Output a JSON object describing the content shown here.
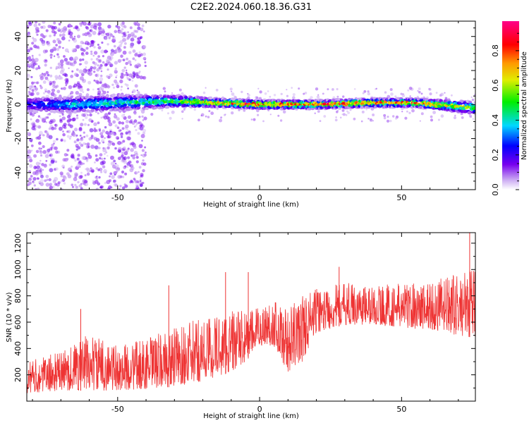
{
  "chart_data": [
    {
      "type": "heatmap",
      "title": "C2E2.2024.060.18.36.G31",
      "xlabel": "Height of straight line (km)",
      "ylabel": "Frequency (Hz)",
      "xlim": [
        -82,
        76
      ],
      "ylim": [
        -50,
        49
      ],
      "xticks": [
        -50,
        0,
        50
      ],
      "yticks": [
        -40,
        -20,
        0,
        20,
        40
      ],
      "colorbar": {
        "label": "Normalized spectral amplitude",
        "range": [
          0.0,
          0.97
        ],
        "ticks": [
          0.0,
          0.2,
          0.4,
          0.6,
          0.8
        ],
        "tick_labels": [
          "0.0",
          "0.2",
          "0.4",
          "0.6",
          "0.8"
        ],
        "colormap": "rainbow (white-purple-blue-cyan-green-yellow-orange-red-magenta)"
      },
      "ridge": {
        "center_hz": 0,
        "description": "strong narrow band near 0 Hz across all heights; broad diffuse purple scatter below about -40 km",
        "segments": [
          {
            "x": -82,
            "center": 0,
            "halfwidth": 4,
            "amplitude": 0.25
          },
          {
            "x": -65,
            "center": 0,
            "halfwidth": 4,
            "amplitude": 0.4
          },
          {
            "x": -50,
            "center": 1,
            "halfwidth": 4,
            "amplitude": 0.45
          },
          {
            "x": -30,
            "center": 2,
            "halfwidth": 3,
            "amplitude": 0.55
          },
          {
            "x": -15,
            "center": 1,
            "halfwidth": 2,
            "amplitude": 0.8
          },
          {
            "x": 0,
            "center": 0,
            "halfwidth": 2,
            "amplitude": 0.9
          },
          {
            "x": 20,
            "center": 0,
            "halfwidth": 2,
            "amplitude": 0.85
          },
          {
            "x": 40,
            "center": 1,
            "halfwidth": 2,
            "amplitude": 0.85
          },
          {
            "x": 55,
            "center": 1,
            "halfwidth": 2,
            "amplitude": 0.85
          },
          {
            "x": 76,
            "center": -2,
            "halfwidth": 3,
            "amplitude": 0.6
          }
        ]
      }
    },
    {
      "type": "line",
      "xlabel": "Height of straight line (km)",
      "ylabel": "SNR (10 * v/v)",
      "xlim": [
        -82,
        76
      ],
      "ylim": [
        0,
        1280
      ],
      "xticks": [
        -50,
        0,
        50
      ],
      "yticks": [
        200,
        400,
        600,
        800,
        1000,
        1200
      ],
      "color": "#ee3333",
      "envelope": [
        {
          "x": -82,
          "low": 60,
          "high": 300
        },
        {
          "x": -70,
          "low": 80,
          "high": 380
        },
        {
          "x": -60,
          "low": 80,
          "high": 520
        },
        {
          "x": -50,
          "low": 80,
          "high": 420
        },
        {
          "x": -40,
          "low": 90,
          "high": 480
        },
        {
          "x": -30,
          "low": 110,
          "high": 560
        },
        {
          "x": -20,
          "low": 150,
          "high": 640
        },
        {
          "x": -10,
          "low": 220,
          "high": 700
        },
        {
          "x": -5,
          "low": 300,
          "high": 680
        },
        {
          "x": 0,
          "low": 420,
          "high": 720
        },
        {
          "x": 5,
          "low": 420,
          "high": 780
        },
        {
          "x": 10,
          "low": 220,
          "high": 700
        },
        {
          "x": 15,
          "low": 300,
          "high": 820
        },
        {
          "x": 20,
          "low": 520,
          "high": 860
        },
        {
          "x": 30,
          "low": 580,
          "high": 900
        },
        {
          "x": 40,
          "low": 580,
          "high": 880
        },
        {
          "x": 50,
          "low": 560,
          "high": 900
        },
        {
          "x": 60,
          "low": 540,
          "high": 920
        },
        {
          "x": 70,
          "low": 500,
          "high": 960
        },
        {
          "x": 76,
          "low": 480,
          "high": 1000
        }
      ],
      "spikes": [
        {
          "x": -63,
          "y": 700
        },
        {
          "x": -32,
          "y": 880
        },
        {
          "x": -12,
          "y": 980
        },
        {
          "x": -4,
          "y": 980
        },
        {
          "x": 28,
          "y": 1020
        },
        {
          "x": 74,
          "y": 1280
        }
      ]
    }
  ]
}
